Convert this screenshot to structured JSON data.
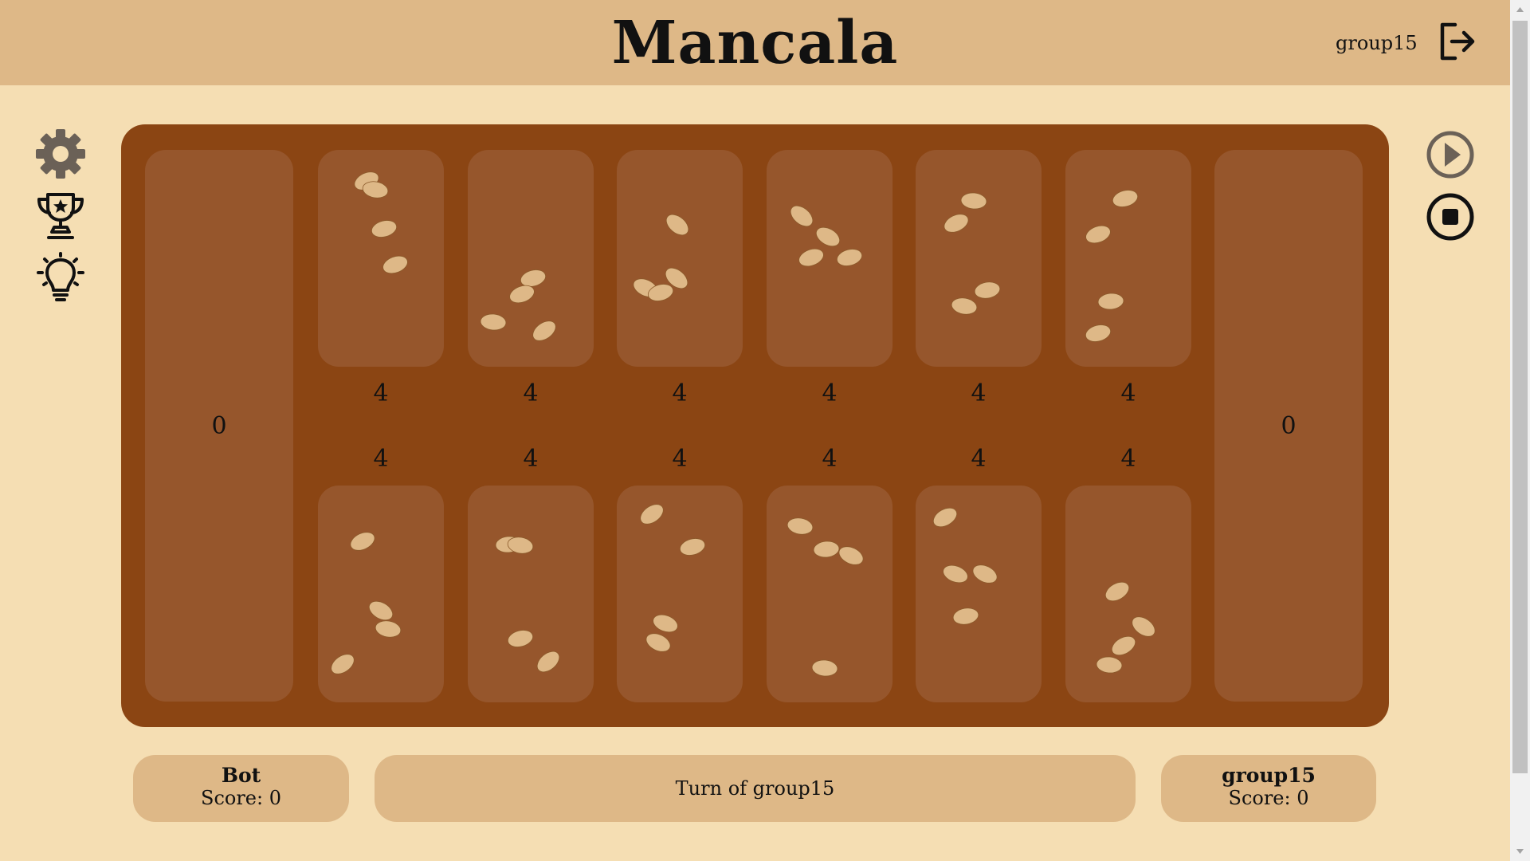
{
  "header": {
    "title": "Mancala",
    "username": "group15"
  },
  "sidebar": {
    "icons": [
      "gear-icon",
      "trophy-icon",
      "lightbulb-icon"
    ]
  },
  "controls": {
    "icons": [
      "play-icon",
      "stop-icon"
    ]
  },
  "board": {
    "left_store": "0",
    "right_store": "0",
    "top_counts": [
      "4",
      "4",
      "4",
      "4",
      "4",
      "4"
    ],
    "bottom_counts": [
      "4",
      "4",
      "4",
      "4",
      "4",
      "4"
    ]
  },
  "players": {
    "left": {
      "name": "Bot",
      "score": "Score: 0"
    },
    "right": {
      "name": "group15",
      "score": "Score: 0"
    }
  },
  "status": {
    "turn": "Turn of group15"
  },
  "colors": {
    "background": "#f5deb3",
    "header": "#deb887",
    "board": "#8b4513",
    "pit": "#96562c",
    "seed": "#deb887"
  }
}
